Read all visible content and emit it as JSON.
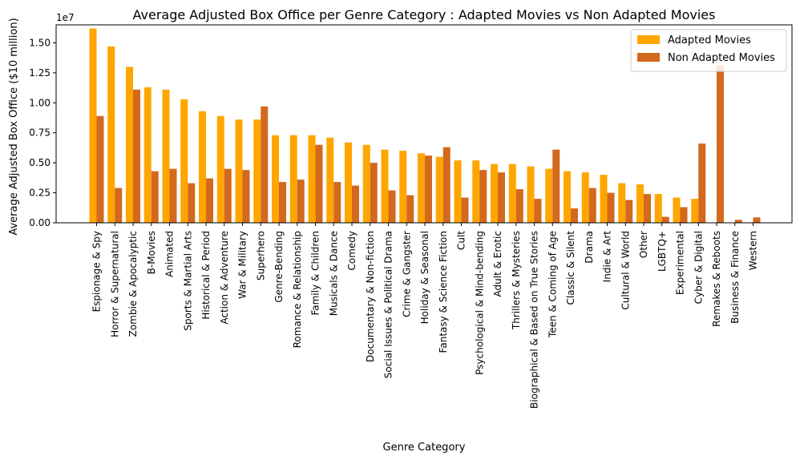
{
  "chart_data": {
    "type": "bar",
    "title": "Average Adjusted Box Office per Genre Category : Adapted Movies vs Non Adapted Movies",
    "xlabel": "Genre Category",
    "ylabel": "Average Adjusted Box Office ($10 million)",
    "y_multiplier_label": "1e7",
    "ylim": [
      0,
      16500000
    ],
    "yticks": [
      0,
      2500000,
      5000000,
      7500000,
      10000000,
      12500000,
      15000000
    ],
    "ytick_labels": [
      "0.00",
      "0.25",
      "0.50",
      "0.75",
      "1.00",
      "1.25",
      "1.50"
    ],
    "grid": false,
    "legend_position": "top-right",
    "categories": [
      "Espionage & Spy",
      "Horror & Supernatural",
      "Zombie & Apocalyptic",
      "B-Movies",
      "Animated",
      "Sports & Martial Arts",
      "Historical & Period",
      "Action & Adventure",
      "War & Military",
      "Superhero",
      "Genre-Bending",
      "Romance & Relationship",
      "Family & Children",
      "Musicals & Dance",
      "Comedy",
      "Documentary & Non-fiction",
      "Social Issues & Political Drama",
      "Crime & Gangster",
      "Holiday & Seasonal",
      "Fantasy & Science Fiction",
      "Cult",
      "Psychological & Mind-bending",
      "Adult & Erotic",
      "Thrillers & Mysteries",
      "Biographical & Based on True Stories",
      "Teen & Coming of Age",
      "Classic & Silent",
      "Drama",
      "Indie & Art",
      "Cultural & World",
      "Other",
      "LGBTQ+",
      "Experimental",
      "Cyber & Digital",
      "Remakes & Reboots",
      "Business & Finance",
      "Western"
    ],
    "series": [
      {
        "name": "Adapted Movies",
        "color": "#FFA500",
        "values": [
          16200000,
          14700000,
          13000000,
          11300000,
          11100000,
          10300000,
          9300000,
          8900000,
          8600000,
          8600000,
          7300000,
          7300000,
          7300000,
          7100000,
          6700000,
          6500000,
          6100000,
          6000000,
          5800000,
          5500000,
          5200000,
          5200000,
          4900000,
          4900000,
          4700000,
          4500000,
          4300000,
          4200000,
          4000000,
          3300000,
          3200000,
          2400000,
          2100000,
          2000000,
          0,
          0,
          0
        ]
      },
      {
        "name": "Non Adapted Movies",
        "color": "#D2691E",
        "values": [
          8900000,
          2900000,
          11100000,
          4300000,
          4500000,
          3300000,
          3700000,
          4500000,
          4400000,
          9700000,
          3400000,
          3600000,
          6500000,
          3400000,
          3100000,
          5000000,
          2700000,
          2300000,
          5600000,
          6300000,
          2100000,
          4400000,
          4200000,
          2800000,
          2000000,
          6100000,
          1200000,
          2900000,
          2500000,
          1900000,
          2400000,
          500000,
          1300000,
          6600000,
          13100000,
          250000,
          450000
        ]
      }
    ]
  }
}
